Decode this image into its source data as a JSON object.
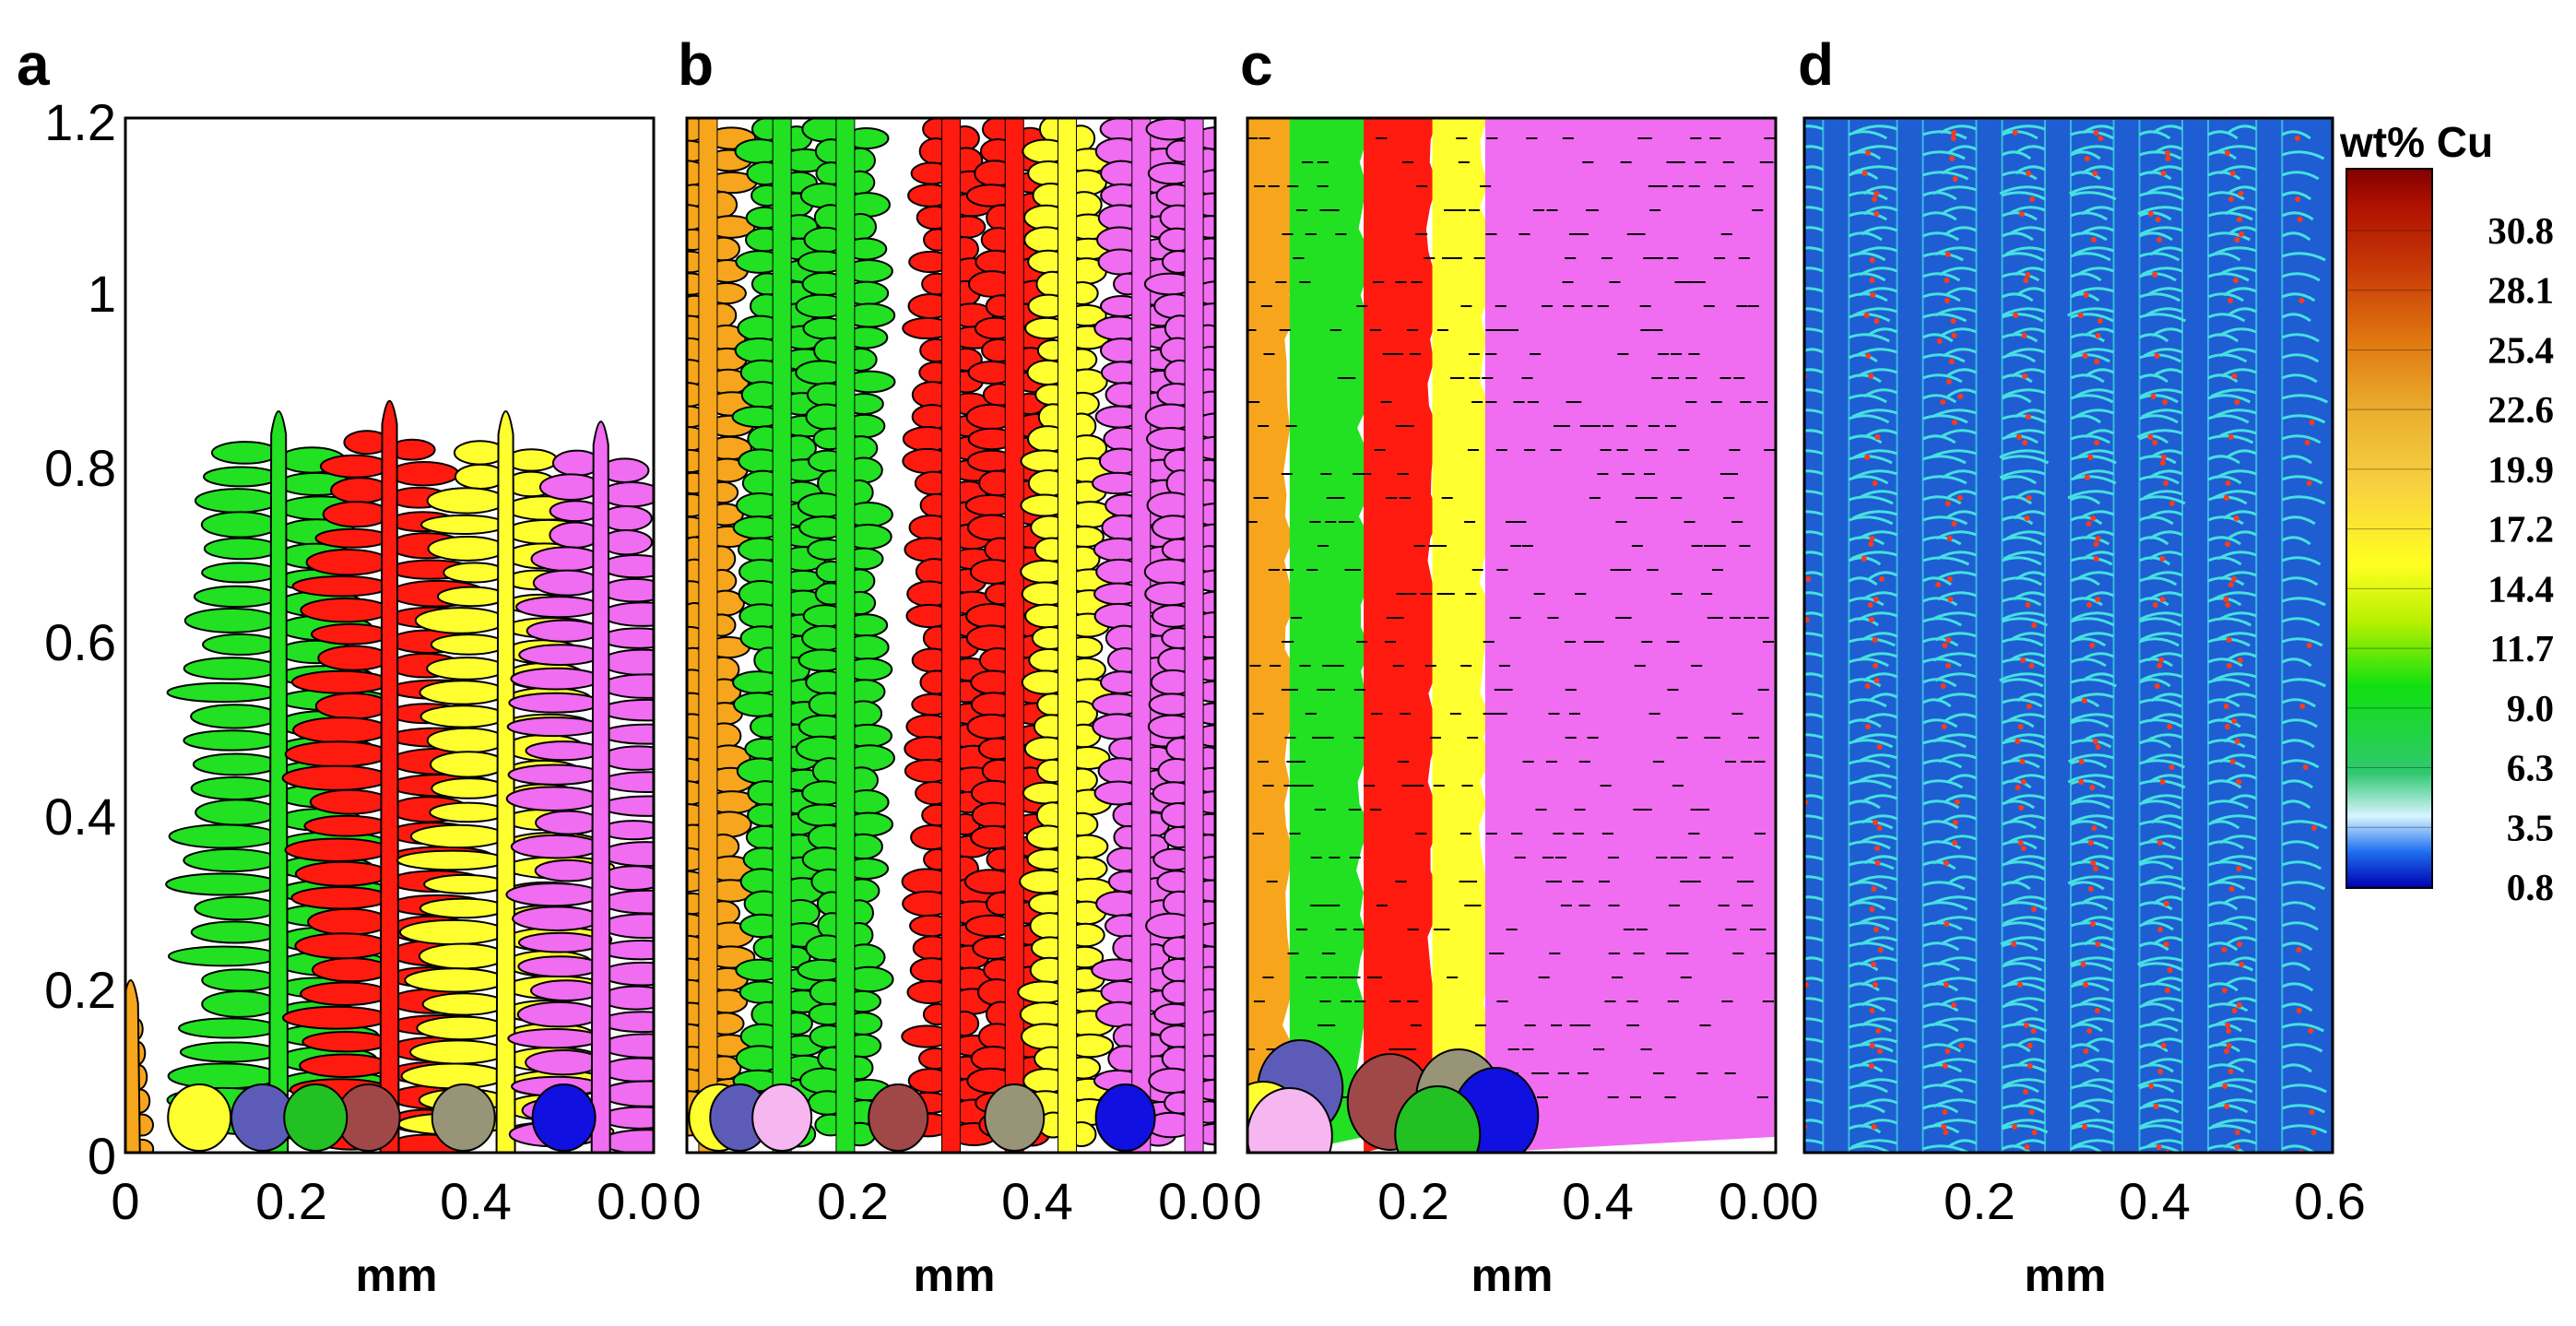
{
  "figure": {
    "panels": [
      {
        "letter": "a",
        "xlabel": "mm",
        "xticks": [
          "0",
          "0.2",
          "0.4",
          "0.0"
        ]
      },
      {
        "letter": "b",
        "xlabel": "mm",
        "xticks": [
          "0",
          "0.2",
          "0.4",
          "0.0"
        ]
      },
      {
        "letter": "c",
        "xlabel": "mm",
        "xticks": [
          "0",
          "0.2",
          "0.4",
          "0.0"
        ]
      },
      {
        "letter": "d",
        "xlabel": "mm",
        "xticks": [
          "0",
          "0.2",
          "0.4",
          "0.6"
        ]
      }
    ],
    "yticks": [
      "1.2",
      "1",
      "0.8",
      "0.6",
      "0.4",
      "0.2",
      "0"
    ],
    "grain_colors": [
      "#f7a51c",
      "#22e022",
      "#ff1a10",
      "#ffff30",
      "#f06cf0"
    ],
    "seed_colors": [
      "#5c5cb8",
      "#a04848",
      "#989478",
      "#1010e0",
      "#ffff30",
      "#f6b6f0",
      "#22c022"
    ],
    "colorbar": {
      "title": "wt% Cu",
      "labels": [
        "30.8",
        "28.1",
        "25.4",
        "22.6",
        "19.9",
        "17.2",
        "14.4",
        "11.7",
        "9.0",
        "6.3",
        "3.5",
        "0.8"
      ]
    },
    "concentration_colors": {
      "background": "#1e5ed2",
      "arm": "#46e0e0",
      "hot": "#ff3a1a"
    }
  }
}
